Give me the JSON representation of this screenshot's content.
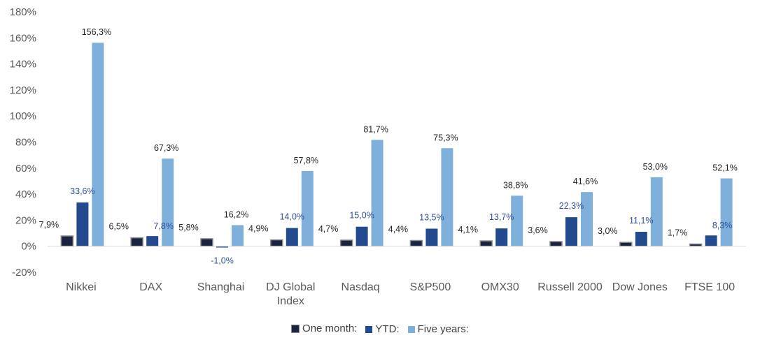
{
  "chart_data": {
    "type": "bar",
    "categories": [
      [
        "Nikkei"
      ],
      [
        "DAX"
      ],
      [
        "Shanghai"
      ],
      [
        "DJ Global",
        "Index"
      ],
      [
        "Nasdaq"
      ],
      [
        "S&P500"
      ],
      [
        "OMX30"
      ],
      [
        "Russell 2000"
      ],
      [
        "Dow Jones"
      ],
      [
        "FTSE 100"
      ]
    ],
    "series": [
      {
        "name": "One month:",
        "color": "#1a2340",
        "label_color": "#262626",
        "values": [
          7.9,
          6.5,
          5.8,
          4.9,
          4.7,
          4.4,
          4.1,
          3.6,
          3.0,
          1.7
        ],
        "labels": [
          "7,9%",
          "6,5%",
          "5,8%",
          "4,9%",
          "4,7%",
          "4,4%",
          "4,1%",
          "3,6%",
          "3,0%",
          "1,7%"
        ]
      },
      {
        "name": "YTD:",
        "color": "#234a8e",
        "label_color": "#2f4f9a",
        "values": [
          33.6,
          7.8,
          -1.0,
          14.0,
          15.0,
          13.5,
          13.7,
          22.3,
          11.1,
          8.3
        ],
        "labels": [
          "33,6%",
          "7,8%",
          "-1,0%",
          "14,0%",
          "15,0%",
          "13,5%",
          "13,7%",
          "22,3%",
          "11,1%",
          "8,3%"
        ]
      },
      {
        "name": "Five years:",
        "color": "#7fb0dc",
        "label_color": "#262626",
        "values": [
          156.3,
          67.3,
          16.2,
          57.8,
          81.7,
          75.3,
          38.8,
          41.6,
          53.0,
          52.1
        ],
        "labels": [
          "156,3%",
          "67,3%",
          "16,2%",
          "57,8%",
          "81,7%",
          "75,3%",
          "38,8%",
          "41,6%",
          "53,0%",
          "52,1%"
        ]
      }
    ],
    "ylim": [
      -20,
      180
    ],
    "yticks": [
      -20,
      0,
      20,
      40,
      60,
      80,
      100,
      120,
      140,
      160,
      180
    ],
    "ytick_labels": [
      "-20%",
      "0%",
      "20%",
      "40%",
      "60%",
      "80%",
      "100%",
      "120%",
      "140%",
      "160%",
      "180%"
    ],
    "grid": false,
    "legend_position": "bottom"
  }
}
